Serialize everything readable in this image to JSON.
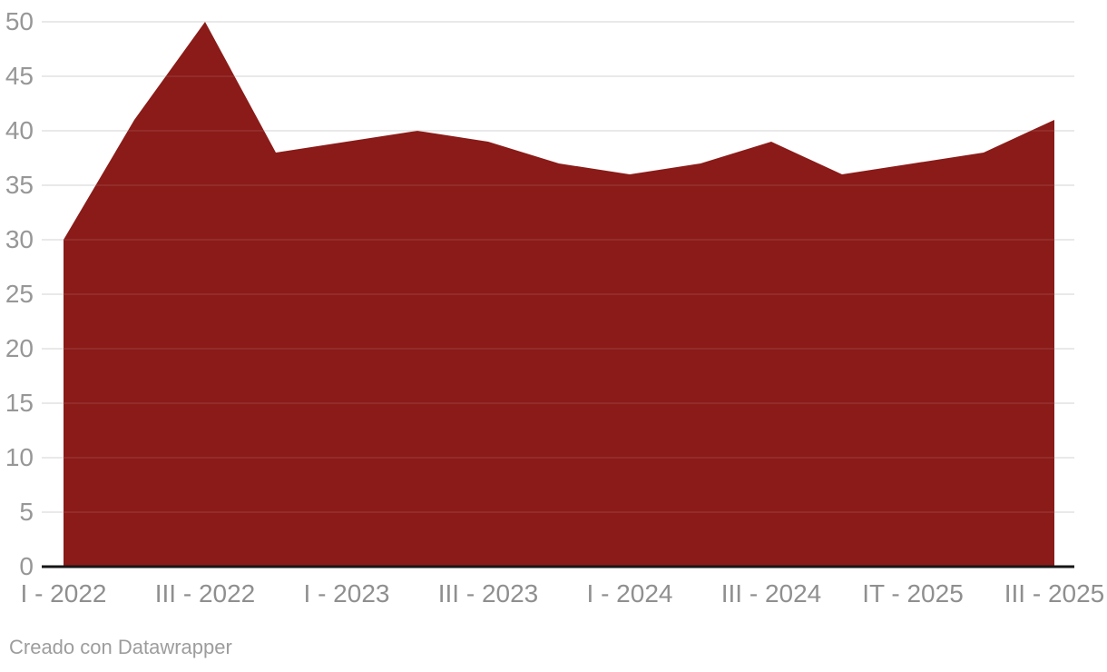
{
  "chart_data": {
    "type": "area",
    "title": "",
    "xlabel": "",
    "ylabel": "",
    "values": [
      30,
      41,
      50,
      38,
      39,
      40,
      39,
      37,
      36,
      37,
      39,
      36,
      37,
      38,
      41
    ],
    "x_tick_indices": [
      0,
      2,
      4,
      6,
      8,
      10,
      12,
      14
    ],
    "x_tick_labels": [
      "I - 2022",
      "III - 2022",
      "I - 2023",
      "III - 2023",
      "I - 2024",
      "III - 2024",
      "IT - 2025",
      "III - 2025"
    ],
    "y_ticks": [
      0,
      5,
      10,
      15,
      20,
      25,
      30,
      35,
      40,
      45,
      50
    ],
    "ylim": [
      0,
      50
    ],
    "grid": true,
    "legend_position": "none",
    "colors": {
      "area": "#8a1b18",
      "grid": "#e8e8e8",
      "grid_over_area": "rgba(255,255,255,0.08)",
      "baseline": "#161616",
      "y_axis_text": "#979797",
      "x_axis_text": "#8f8f8f"
    }
  },
  "footer": {
    "text": "Creado con Datawrapper"
  }
}
